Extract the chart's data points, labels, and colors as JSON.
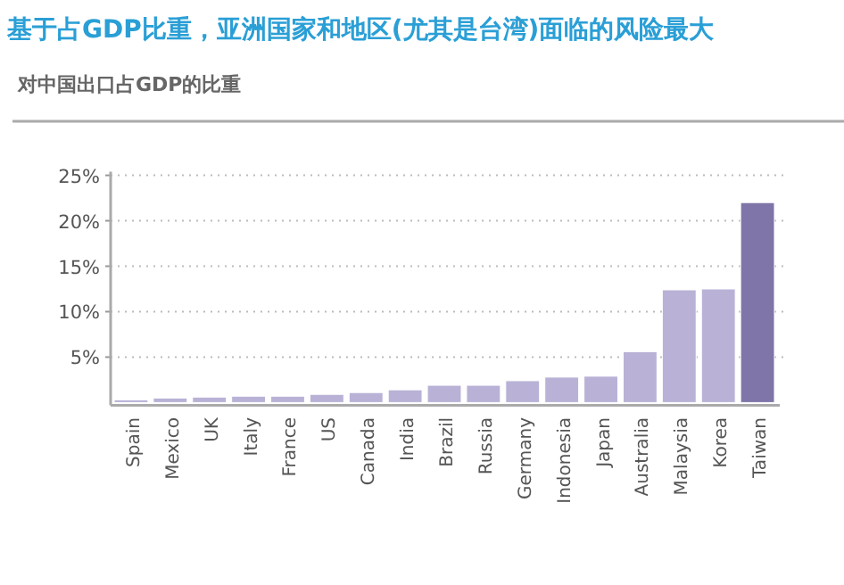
{
  "chart_data": {
    "type": "bar",
    "title": "基于占GDP比重，亚洲国家和地区(尤其是台湾)面临的风险最大",
    "subtitle": "对中国出口占GDP的比重",
    "categories": [
      "Spain",
      "Mexico",
      "UK",
      "Italy",
      "France",
      "US",
      "Canada",
      "India",
      "Brazil",
      "Russia",
      "Germany",
      "Indonesia",
      "Japan",
      "Australia",
      "Malaysia",
      "Korea",
      "Taiwan"
    ],
    "values": [
      0.3,
      0.5,
      0.6,
      0.7,
      0.7,
      0.9,
      1.1,
      1.4,
      1.9,
      1.9,
      2.4,
      2.8,
      2.9,
      5.6,
      12.4,
      12.5,
      22
    ],
    "colors": [
      "#b9b2d6",
      "#b9b2d6",
      "#b9b2d6",
      "#b9b2d6",
      "#b9b2d6",
      "#b9b2d6",
      "#b9b2d6",
      "#b9b2d6",
      "#b9b2d6",
      "#b9b2d6",
      "#b9b2d6",
      "#b9b2d6",
      "#b9b2d6",
      "#b9b2d6",
      "#b9b2d6",
      "#b9b2d6",
      "#8075a8"
    ],
    "ylim": [
      0,
      25
    ],
    "yticks": [
      {
        "value": 5,
        "label": "5%"
      },
      {
        "value": 10,
        "label": "10%"
      },
      {
        "value": 15,
        "label": "15%"
      },
      {
        "value": 20,
        "label": "20%"
      },
      {
        "value": 25,
        "label": "25%"
      }
    ],
    "grid": "y"
  }
}
